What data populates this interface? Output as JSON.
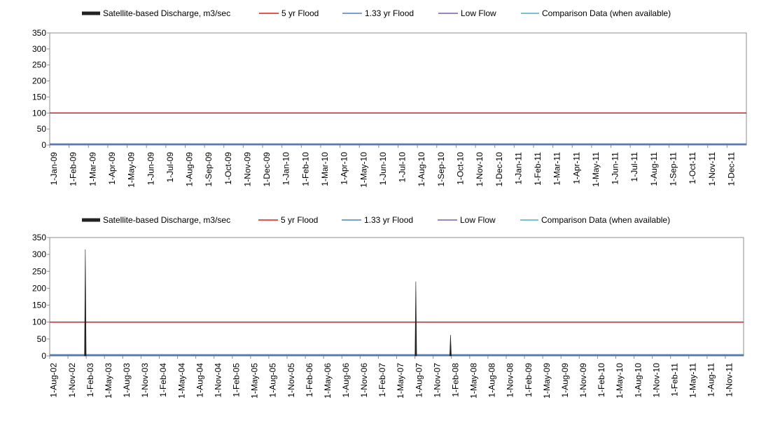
{
  "chart_data": [
    {
      "type": "line",
      "ylim": [
        0,
        350
      ],
      "yticks": [
        "350",
        "300",
        "250",
        "200",
        "150",
        "100",
        "50",
        "0"
      ],
      "categories": [
        "1-Jan-09",
        "1-Feb-09",
        "1-Mar-09",
        "1-Apr-09",
        "1-May-09",
        "1-Jun-09",
        "1-Jul-09",
        "1-Aug-09",
        "1-Sep-09",
        "1-Oct-09",
        "1-Nov-09",
        "1-Dec-09",
        "1-Jan-10",
        "1-Feb-10",
        "1-Mar-10",
        "1-Apr-10",
        "1-May-10",
        "1-Jun-10",
        "1-Jul-10",
        "1-Aug-10",
        "1-Sep-10",
        "1-Oct-10",
        "1-Nov-10",
        "1-Dec-10",
        "1-Jan-11",
        "1-Feb-11",
        "1-Mar-11",
        "1-Apr-11",
        "1-May-11",
        "1-Jun-11",
        "1-Jul-11",
        "1-Aug-11",
        "1-Sep-11",
        "1-Oct-11",
        "1-Nov-11",
        "1-Dec-11"
      ],
      "legend": [
        {
          "name": "Satellite-based Discharge, m3/sec",
          "color": "#222222"
        },
        {
          "name": "5 yr Flood",
          "color": "#e31a1c"
        },
        {
          "name": "1.33 yr Flood",
          "color": "#4f81bd"
        },
        {
          "name": "Low Flow",
          "color": "#7b5ca8"
        },
        {
          "name": "Comparison Data (when available)",
          "color": "#4bacc6"
        }
      ],
      "flood_5yr": 100,
      "flood_133yr": 3,
      "low_flow": 1,
      "discharge_spikes": []
    },
    {
      "type": "line",
      "ylim": [
        0,
        350
      ],
      "yticks": [
        "350",
        "300",
        "250",
        "200",
        "150",
        "100",
        "50",
        "0"
      ],
      "categories": [
        "1-Aug-02",
        "1-Nov-02",
        "1-Feb-03",
        "1-May-03",
        "1-Aug-03",
        "1-Nov-03",
        "1-Feb-04",
        "1-May-04",
        "1-Aug-04",
        "1-Nov-04",
        "1-Feb-05",
        "1-May-05",
        "1-Aug-05",
        "1-Nov-05",
        "1-Feb-06",
        "1-May-06",
        "1-Aug-06",
        "1-Nov-06",
        "1-Feb-07",
        "1-May-07",
        "1-Aug-07",
        "1-Nov-07",
        "1-Feb-08",
        "1-May-08",
        "1-Aug-08",
        "1-Nov-08",
        "1-Feb-09",
        "1-May-09",
        "1-Aug-09",
        "1-Nov-09",
        "1-Feb-10",
        "1-May-10",
        "1-Aug-10",
        "1-Nov-10",
        "1-Feb-11",
        "1-May-11",
        "1-Aug-11",
        "1-Nov-11"
      ],
      "legend": [
        {
          "name": "Satellite-based Discharge, m3/sec",
          "color": "#222222"
        },
        {
          "name": "5 yr Flood",
          "color": "#e31a1c"
        },
        {
          "name": "1.33 yr Flood",
          "color": "#4f81bd"
        },
        {
          "name": "Low Flow",
          "color": "#7b5ca8"
        },
        {
          "name": "Comparison Data (when available)",
          "color": "#4bacc6"
        }
      ],
      "flood_5yr": 100,
      "flood_133yr": 3,
      "low_flow": 1,
      "discharge_spikes": [
        {
          "x": 1.95,
          "value": 315
        },
        {
          "x": 20.05,
          "value": 220
        },
        {
          "x": 21.95,
          "value": 62
        }
      ]
    }
  ]
}
